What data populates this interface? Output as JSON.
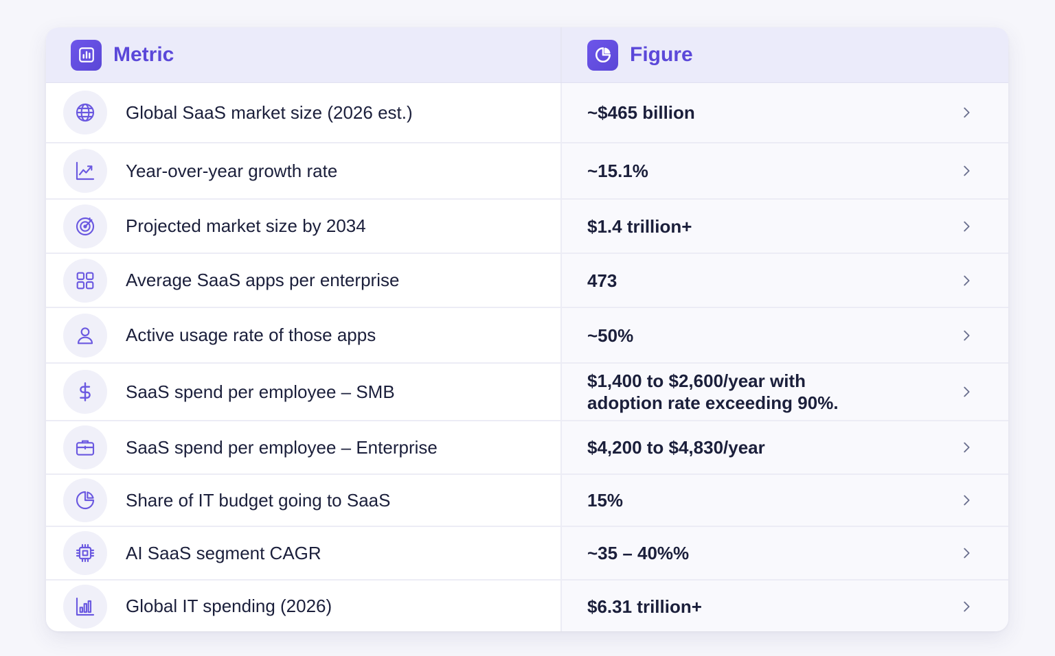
{
  "header": {
    "metric_label": "Metric",
    "figure_label": "Figure"
  },
  "rows": [
    {
      "metric": "Global SaaS market size (2026 est.)",
      "figure": "~$465 billion",
      "icon": "globe-icon"
    },
    {
      "metric": "Year-over-year growth rate",
      "figure": "~15.1%",
      "icon": "trend-line-icon"
    },
    {
      "metric": "Projected market size by 2034",
      "figure": "$1.4 trillion+",
      "icon": "target-icon"
    },
    {
      "metric": "Average SaaS apps per enterprise",
      "figure": "473",
      "icon": "apps-grid-icon"
    },
    {
      "metric": "Active usage rate of those apps",
      "figure": "~50%",
      "icon": "user-icon"
    },
    {
      "metric": "SaaS spend per employee – SMB",
      "figure": "$1,400 to $2,600/year with adoption rate exceeding 90%.",
      "icon": "dollar-icon"
    },
    {
      "metric": "SaaS spend per employee – Enterprise",
      "figure": "$4,200 to $4,830/year",
      "icon": "briefcase-icon"
    },
    {
      "metric": "Share of IT budget going to SaaS",
      "figure": "15%",
      "icon": "pie-chart-icon"
    },
    {
      "metric": "AI SaaS segment CAGR",
      "figure": "~35 – 40%%",
      "icon": "chip-icon"
    },
    {
      "metric": "Global IT spending (2026)",
      "figure": "$6.31 trillion+",
      "icon": "bar-chart-icon"
    }
  ],
  "colors": {
    "accent": "#5b48d9",
    "text": "#1b1f3b",
    "icon_stroke": "#6a58e0"
  }
}
